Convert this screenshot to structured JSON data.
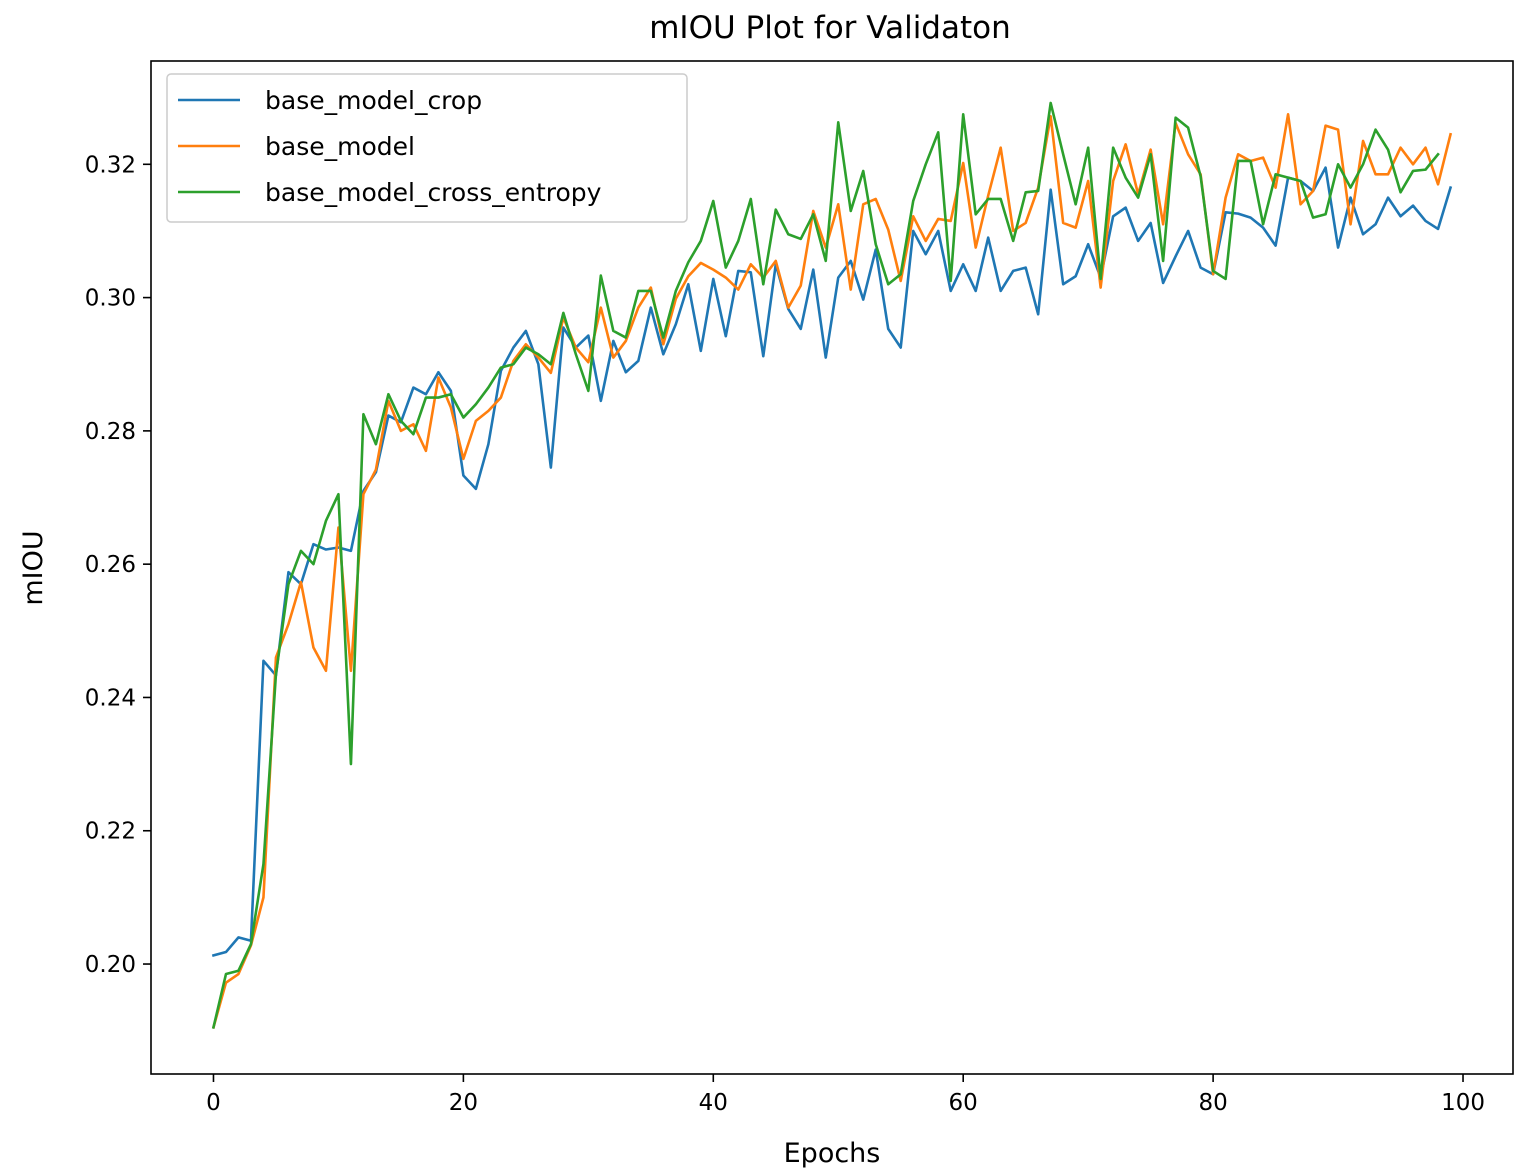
{
  "chart_data": {
    "type": "line",
    "title": "mIOU Plot for Validaton",
    "xlabel": "Epochs",
    "ylabel": "mIOU",
    "xlim": [
      -5,
      104
    ],
    "ylim": [
      0.1835,
      0.3355
    ],
    "xticks": [
      0,
      20,
      40,
      60,
      80,
      100
    ],
    "yticks": [
      0.2,
      0.22,
      0.24,
      0.26,
      0.28,
      0.3,
      0.32
    ],
    "xtick_labels": [
      "0",
      "20",
      "40",
      "60",
      "80",
      "100"
    ],
    "ytick_labels": [
      "0.20",
      "0.22",
      "0.24",
      "0.26",
      "0.28",
      "0.30",
      "0.32"
    ],
    "grid": false,
    "legend_position": "upper-left",
    "series": [
      {
        "name": "base_model_crop",
        "color": "#1f77b4",
        "values": [
          0.2013,
          0.2018,
          0.204,
          0.2035,
          0.2455,
          0.2433,
          0.2588,
          0.257,
          0.263,
          0.2622,
          0.2625,
          0.262,
          0.271,
          0.2738,
          0.2823,
          0.2813,
          0.2865,
          0.2855,
          0.2888,
          0.286,
          0.2733,
          0.2713,
          0.278,
          0.289,
          0.2925,
          0.295,
          0.29,
          0.2745,
          0.2955,
          0.2925,
          0.2943,
          0.2845,
          0.2935,
          0.2888,
          0.2905,
          0.2985,
          0.2915,
          0.296,
          0.302,
          0.292,
          0.3028,
          0.2942,
          0.304,
          0.3038,
          0.2912,
          0.305,
          0.2983,
          0.2953,
          0.3042,
          0.291,
          0.303,
          0.3055,
          0.2997,
          0.3072,
          0.2953,
          0.2925,
          0.31,
          0.3065,
          0.31,
          0.301,
          0.305,
          0.301,
          0.309,
          0.301,
          0.304,
          0.3045,
          0.2975,
          0.3162,
          0.302,
          0.3032,
          0.308,
          0.303,
          0.3122,
          0.3135,
          0.3085,
          0.3112,
          0.3022,
          0.3062,
          0.31,
          0.3045,
          0.3035,
          0.3128,
          0.3126,
          0.312,
          0.3105,
          0.3078,
          0.318,
          0.3175,
          0.316,
          0.3195,
          0.3075,
          0.315,
          0.3095,
          0.311,
          0.315,
          0.3122,
          0.3138,
          0.3115,
          0.3103,
          0.3165
        ]
      },
      {
        "name": "base_model",
        "color": "#ff7f0e",
        "values": [
          0.1905,
          0.1972,
          0.1985,
          0.2028,
          0.21,
          0.246,
          0.251,
          0.2573,
          0.2475,
          0.244,
          0.2655,
          0.244,
          0.2705,
          0.2742,
          0.2845,
          0.28,
          0.281,
          0.277,
          0.288,
          0.2835,
          0.2758,
          0.2815,
          0.283,
          0.285,
          0.2905,
          0.293,
          0.291,
          0.2887,
          0.297,
          0.2925,
          0.2903,
          0.2985,
          0.291,
          0.2935,
          0.2985,
          0.3015,
          0.293,
          0.2998,
          0.3032,
          0.3052,
          0.3042,
          0.303,
          0.3012,
          0.305,
          0.303,
          0.3055,
          0.2985,
          0.3018,
          0.313,
          0.3075,
          0.314,
          0.3012,
          0.314,
          0.3148,
          0.3102,
          0.3025,
          0.3122,
          0.3085,
          0.3118,
          0.3115,
          0.3202,
          0.3075,
          0.3153,
          0.3225,
          0.31,
          0.3112,
          0.3165,
          0.3272,
          0.3112,
          0.3105,
          0.3175,
          0.3015,
          0.3175,
          0.323,
          0.3155,
          0.3222,
          0.311,
          0.3262,
          0.3215,
          0.3185,
          0.3035,
          0.315,
          0.3215,
          0.3205,
          0.321,
          0.3165,
          0.3275,
          0.314,
          0.316,
          0.3258,
          0.3252,
          0.311,
          0.3235,
          0.3185,
          0.3185,
          0.3225,
          0.32,
          0.3225,
          0.317,
          0.3245
        ]
      },
      {
        "name": "base_model_cross_entropy",
        "color": "#2ca02c",
        "values": [
          0.1905,
          0.1985,
          0.199,
          0.203,
          0.215,
          0.2435,
          0.257,
          0.262,
          0.26,
          0.2665,
          0.2705,
          0.23,
          0.2825,
          0.278,
          0.2855,
          0.2815,
          0.2795,
          0.285,
          0.285,
          0.2855,
          0.282,
          0.284,
          0.2865,
          0.2895,
          0.29,
          0.2925,
          0.2915,
          0.29,
          0.2977,
          0.2915,
          0.286,
          0.3033,
          0.295,
          0.294,
          0.301,
          0.301,
          0.294,
          0.301,
          0.3053,
          0.3085,
          0.3145,
          0.3045,
          0.3085,
          0.3148,
          0.302,
          0.3132,
          0.3095,
          0.3088,
          0.3125,
          0.3055,
          0.3263,
          0.313,
          0.319,
          0.308,
          0.302,
          0.3035,
          0.3145,
          0.32,
          0.3248,
          0.3025,
          0.3275,
          0.3125,
          0.3148,
          0.3148,
          0.3085,
          0.3158,
          0.316,
          0.3292,
          0.3215,
          0.314,
          0.3225,
          0.3028,
          0.3225,
          0.318,
          0.315,
          0.3215,
          0.3055,
          0.327,
          0.3255,
          0.3182,
          0.304,
          0.3028,
          0.3205,
          0.3205,
          0.311,
          0.3185,
          0.318,
          0.3175,
          0.312,
          0.3125,
          0.32,
          0.3165,
          0.32,
          0.3252,
          0.3222,
          0.3158,
          0.319,
          0.3192,
          0.3215
        ]
      }
    ]
  }
}
